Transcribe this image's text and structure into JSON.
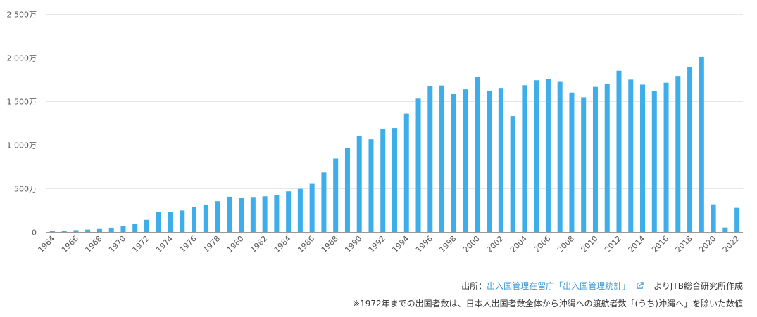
{
  "colors": {
    "bar": "#3daee9",
    "link": "#3d9ad6"
  },
  "source": {
    "prefix": "出所：",
    "link_text": "出入国管理在留庁「出入国管理統計」",
    "suffix": "よりJTB総合研究所作成",
    "icon": "external-link-icon"
  },
  "note": "※1972年までの出国者数は、日本人出国者数全体から沖縄への渡航者数「(うち)沖縄へ」を除いた数値",
  "chart_data": {
    "type": "bar",
    "title": "",
    "xlabel": "",
    "ylabel": "",
    "ylim": [
      0,
      25000000
    ],
    "y_ticks": [
      {
        "value": 0,
        "label": "0"
      },
      {
        "value": 5000000,
        "label": "500万"
      },
      {
        "value": 10000000,
        "label": "1 000万"
      },
      {
        "value": 15000000,
        "label": "1 500万"
      },
      {
        "value": 20000000,
        "label": "2 000万"
      },
      {
        "value": 25000000,
        "label": "2 500万"
      }
    ],
    "x_tick_labels": [
      "1964",
      "1966",
      "1968",
      "1970",
      "1972",
      "1974",
      "1976",
      "1978",
      "1980",
      "1982",
      "1984",
      "1986",
      "1988",
      "1990",
      "1992",
      "1994",
      "1996",
      "1998",
      "2000",
      "2002",
      "2004",
      "2006",
      "2008",
      "2010",
      "2012",
      "2014",
      "2016",
      "2018",
      "2020",
      "2022"
    ],
    "grid": true,
    "legend": "none",
    "categories": [
      "1964",
      "1965",
      "1966",
      "1967",
      "1968",
      "1969",
      "1970",
      "1971",
      "1972",
      "1973",
      "1974",
      "1975",
      "1976",
      "1977",
      "1978",
      "1979",
      "1980",
      "1981",
      "1982",
      "1983",
      "1984",
      "1985",
      "1986",
      "1987",
      "1988",
      "1989",
      "1990",
      "1991",
      "1992",
      "1993",
      "1994",
      "1995",
      "1996",
      "1997",
      "1998",
      "1999",
      "2000",
      "2001",
      "2002",
      "2003",
      "2004",
      "2005",
      "2006",
      "2007",
      "2008",
      "2009",
      "2010",
      "2011",
      "2012",
      "2013",
      "2014",
      "2015",
      "2016",
      "2017",
      "2018",
      "2019",
      "2020",
      "2021",
      "2022"
    ],
    "values": [
      130000,
      160000,
      210000,
      270000,
      340000,
      490000,
      660000,
      900000,
      1390000,
      2290000,
      2340000,
      2470000,
      2850000,
      3150000,
      3530000,
      4040000,
      3910000,
      4010000,
      4090000,
      4230000,
      4660000,
      4950000,
      5520000,
      6830000,
      8430000,
      9660000,
      10990000,
      10630000,
      11790000,
      11930000,
      13580000,
      15300000,
      16690000,
      16800000,
      15810000,
      16360000,
      17820000,
      16220000,
      16520000,
      13300000,
      16830000,
      17400000,
      17530000,
      17290000,
      15990000,
      15450000,
      16640000,
      16990000,
      18490000,
      17470000,
      16900000,
      16210000,
      17120000,
      17890000,
      18950000,
      20080000,
      3170000,
      510000,
      2770000
    ]
  }
}
